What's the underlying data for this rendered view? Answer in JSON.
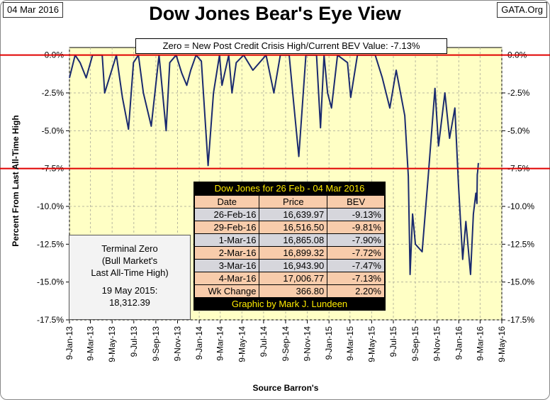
{
  "header": {
    "date": "04 Mar 2016",
    "source": "GATA.Org",
    "title": "Dow Jones Bear's Eye View",
    "subtitle": "Zero = New Post Credit Crisis High/Current BEV Value:  -7.13%"
  },
  "colors": {
    "plot_background": "#ffffc5",
    "series_line": "#1a2a6e",
    "reference_line": "#e00000"
  },
  "chart_data": {
    "type": "line",
    "title": "Dow Jones Bear's Eye View",
    "ylabel": "Percent From Last All-Time High",
    "xlabel": "Source Barron's",
    "ylim": [
      -17.5,
      0.5
    ],
    "xlim": [
      "2013-01-09",
      "2016-05-09"
    ],
    "y_ticks": [
      "0.0%",
      "-2.5%",
      "-5.0%",
      "-7.5%",
      "-10.0%",
      "-12.5%",
      "-15.0%",
      "-17.5%"
    ],
    "x_ticks": [
      "9-Jan-13",
      "9-Mar-13",
      "9-May-13",
      "9-Jul-13",
      "9-Sep-13",
      "9-Nov-13",
      "9-Jan-14",
      "9-Mar-14",
      "9-May-14",
      "9-Jul-14",
      "9-Sep-14",
      "9-Nov-14",
      "9-Jan-15",
      "9-Mar-15",
      "9-May-15",
      "9-Jul-15",
      "9-Sep-15",
      "9-Nov-15",
      "9-Jan-16",
      "9-Mar-16",
      "9-May-16"
    ],
    "grid": true,
    "reference_lines": [
      0.0,
      -7.5
    ],
    "series": [
      {
        "x": [
          "2013-01-09",
          "2013-01-25",
          "2013-02-08",
          "2013-02-25",
          "2013-03-15",
          "2013-04-11",
          "2013-04-18",
          "2013-05-21",
          "2013-06-07",
          "2013-06-24",
          "2013-07-08",
          "2013-07-22",
          "2013-08-05",
          "2013-08-27",
          "2013-09-18",
          "2013-10-08",
          "2013-10-18",
          "2013-11-05",
          "2013-11-21",
          "2013-12-05",
          "2013-12-16",
          "2013-12-31",
          "2014-01-15",
          "2014-02-03",
          "2014-02-18",
          "2014-03-07",
          "2014-03-14",
          "2014-04-02",
          "2014-04-11",
          "2014-04-23",
          "2014-05-14",
          "2014-06-09",
          "2014-07-16",
          "2014-08-07",
          "2014-08-25",
          "2014-09-19",
          "2014-10-01",
          "2014-10-16",
          "2014-11-05",
          "2014-12-05",
          "2014-12-16",
          "2014-12-26",
          "2015-01-05",
          "2015-01-16",
          "2015-02-02",
          "2015-03-02",
          "2015-03-11",
          "2015-03-30",
          "2015-05-19",
          "2015-06-08",
          "2015-06-29",
          "2015-07-17",
          "2015-08-10",
          "2015-08-20",
          "2015-08-25",
          "2015-09-01",
          "2015-09-09",
          "2015-09-28",
          "2015-10-15",
          "2015-11-03",
          "2015-11-13",
          "2015-12-01",
          "2015-12-14",
          "2015-12-29",
          "2016-01-08",
          "2016-01-20",
          "2016-01-29",
          "2016-02-11",
          "2016-02-19",
          "2016-02-26",
          "2016-02-29",
          "2016-03-01",
          "2016-03-02",
          "2016-03-03",
          "2016-03-04"
        ],
        "y": [
          -1.5,
          0.0,
          -0.5,
          -1.5,
          0.0,
          0.0,
          -2.5,
          0.0,
          -2.8,
          -4.9,
          -0.5,
          0.0,
          -2.5,
          -4.7,
          0.0,
          -5.0,
          -0.5,
          0.0,
          -1.2,
          -2.0,
          -1.0,
          0.0,
          -0.4,
          -7.3,
          -2.5,
          0.0,
          -2.0,
          0.0,
          -2.5,
          -0.5,
          0.0,
          -1.0,
          0.0,
          -2.5,
          0.0,
          0.0,
          -3.0,
          -6.7,
          0.0,
          0.0,
          -4.8,
          0.0,
          -2.5,
          -3.5,
          0.0,
          -0.5,
          -2.8,
          0.0,
          0.0,
          -1.5,
          -3.5,
          -1.0,
          -4.0,
          -8.0,
          -14.5,
          -10.5,
          -12.5,
          -13.0,
          -8.0,
          -2.2,
          -6.0,
          -2.5,
          -5.5,
          -3.5,
          -8.5,
          -13.5,
          -11.0,
          -14.5,
          -10.5,
          -9.13,
          -9.81,
          -7.9,
          -7.72,
          -7.47,
          -7.13
        ]
      }
    ]
  },
  "dow_table": {
    "title": "Dow Jones for 26 Feb - 04 Mar 2016",
    "columns": [
      "Date",
      "Price",
      "BEV"
    ],
    "rows": [
      [
        "26-Feb-16",
        "16,639.97",
        "-9.13%"
      ],
      [
        "29-Feb-16",
        "16,516.50",
        "-9.81%"
      ],
      [
        "1-Mar-16",
        "16,865.08",
        "-7.90%"
      ],
      [
        "2-Mar-16",
        "16,899.32",
        "-7.72%"
      ],
      [
        "3-Mar-16",
        "16,943.90",
        "-7.47%"
      ],
      [
        "4-Mar-16",
        "17,006.77",
        "-7.13%"
      ]
    ],
    "footer_row": [
      "Wk Change",
      "366.80",
      "2.20%"
    ],
    "credit": "Graphic by Mark J. Lundeen"
  },
  "terminal_zero": {
    "title_lines": [
      "Terminal Zero",
      "(Bull Market's",
      "Last All-Time High)"
    ],
    "date_line": "19 May 2015:",
    "value_line": "18,312.39"
  }
}
